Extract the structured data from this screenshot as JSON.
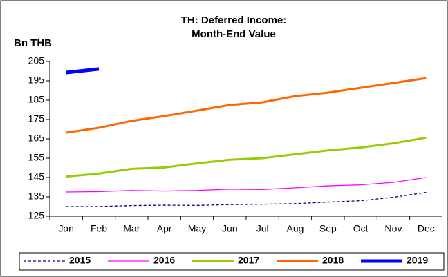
{
  "chart_data": {
    "type": "line",
    "title_lines": [
      "TH: Deferred Income:",
      "Month-End Value"
    ],
    "y_axis_label": "Bn THB",
    "categories": [
      "Jan",
      "Feb",
      "Mar",
      "Apr",
      "May",
      "Jun",
      "Jul",
      "Aug",
      "Sep",
      "Oct",
      "Nov",
      "Dec"
    ],
    "series": [
      {
        "name": "2015",
        "color": "#000080",
        "values": [
          130,
          130,
          130.5,
          130.7,
          130.6,
          131,
          131.2,
          131.5,
          132.3,
          133,
          134.8,
          137.3
        ]
      },
      {
        "name": "2016",
        "color": "#ff00ff",
        "values": [
          137.5,
          137.7,
          138.3,
          138,
          138.3,
          139,
          138.8,
          139.7,
          140.7,
          141.2,
          142.5,
          145
        ]
      },
      {
        "name": "2017",
        "color": "#99cc00",
        "values": [
          145.5,
          147,
          149.5,
          150.2,
          152.3,
          154.2,
          155,
          157,
          159,
          160.5,
          162.7,
          165.6
        ]
      },
      {
        "name": "2018",
        "color": "#ff6600",
        "values": [
          168.2,
          170.7,
          174.3,
          176.8,
          179.6,
          182.5,
          183.9,
          187.1,
          188.9,
          191.4,
          193.9,
          196.4
        ]
      },
      {
        "name": "2019",
        "color": "#0000ff",
        "values": [
          199.3,
          201.1,
          null,
          null,
          null,
          null,
          null,
          null,
          null,
          null,
          null,
          null
        ]
      }
    ],
    "ylim": [
      125,
      205
    ],
    "yticks": [
      125,
      135,
      145,
      155,
      165,
      175,
      185,
      195,
      205
    ],
    "grid": false
  }
}
